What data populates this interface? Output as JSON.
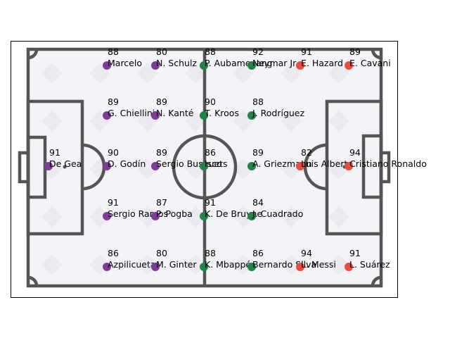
{
  "chart_data": {
    "type": "scatter",
    "title": "",
    "xlabel": "",
    "ylabel": "",
    "grid": false,
    "colors": {
      "purple": "#7d3c98",
      "green": "#1e8449",
      "red": "#e74c3c",
      "pitch_line": "#555555",
      "pitch_bg": "#f4f3f7",
      "pitch_diamond": "#ebeaf0"
    },
    "points": [
      {
        "name": "De Gea",
        "rating": "91",
        "col": 0,
        "row": 2,
        "color": "purple"
      },
      {
        "name": "Marcelo",
        "rating": "88",
        "col": 1,
        "row": 0,
        "color": "purple"
      },
      {
        "name": "G. Chiellini",
        "rating": "89",
        "col": 1,
        "row": 1,
        "color": "purple"
      },
      {
        "name": "D. Godín",
        "rating": "90",
        "col": 1,
        "row": 2,
        "color": "purple"
      },
      {
        "name": "Sergio Ramos",
        "rating": "91",
        "col": 1,
        "row": 3,
        "color": "purple"
      },
      {
        "name": "Azpilicueta",
        "rating": "86",
        "col": 1,
        "row": 4,
        "color": "purple"
      },
      {
        "name": "N. Schulz",
        "rating": "80",
        "col": 2,
        "row": 0,
        "color": "purple"
      },
      {
        "name": "N. Kanté",
        "rating": "89",
        "col": 2,
        "row": 1,
        "color": "purple"
      },
      {
        "name": "Sergio Busquets",
        "rating": "89",
        "col": 2,
        "row": 2,
        "color": "purple"
      },
      {
        "name": "P. Pogba",
        "rating": "87",
        "col": 2,
        "row": 3,
        "color": "purple"
      },
      {
        "name": "M. Ginter",
        "rating": "80",
        "col": 2,
        "row": 4,
        "color": "purple"
      },
      {
        "name": "P. Aubameyang",
        "rating": "88",
        "col": 3,
        "row": 0,
        "color": "green"
      },
      {
        "name": "T. Kroos",
        "rating": "90",
        "col": 3,
        "row": 1,
        "color": "green"
      },
      {
        "name": "Isco",
        "rating": "86",
        "col": 3,
        "row": 2,
        "color": "green"
      },
      {
        "name": "K. De Bruyne",
        "rating": "91",
        "col": 3,
        "row": 3,
        "color": "green"
      },
      {
        "name": "K. Mbappé",
        "rating": "88",
        "col": 3,
        "row": 4,
        "color": "green"
      },
      {
        "name": "Neymar Jr",
        "rating": "92",
        "col": 4,
        "row": 0,
        "color": "green"
      },
      {
        "name": "J. Rodríguez",
        "rating": "88",
        "col": 4,
        "row": 1,
        "color": "green"
      },
      {
        "name": "A. Griezmann",
        "rating": "89",
        "col": 4,
        "row": 2,
        "color": "green"
      },
      {
        "name": "J. Cuadrado",
        "rating": "84",
        "col": 4,
        "row": 3,
        "color": "green"
      },
      {
        "name": "Bernardo Silva",
        "rating": "86",
        "col": 4,
        "row": 4,
        "color": "green"
      },
      {
        "name": "E. Hazard",
        "rating": "91",
        "col": 5,
        "row": 0,
        "color": "red"
      },
      {
        "name": "Luis Alberto",
        "rating": "82",
        "col": 5,
        "row": 2,
        "color": "red"
      },
      {
        "name": "L. Messi",
        "rating": "94",
        "col": 5,
        "row": 4,
        "color": "red"
      },
      {
        "name": "E. Cavani",
        "rating": "89",
        "col": 6,
        "row": 0,
        "color": "red"
      },
      {
        "name": "Cristiano Ronaldo",
        "rating": "94",
        "col": 6,
        "row": 2,
        "color": "red"
      },
      {
        "name": "L. Suárez",
        "rating": "91",
        "col": 6,
        "row": 4,
        "color": "red"
      }
    ]
  }
}
